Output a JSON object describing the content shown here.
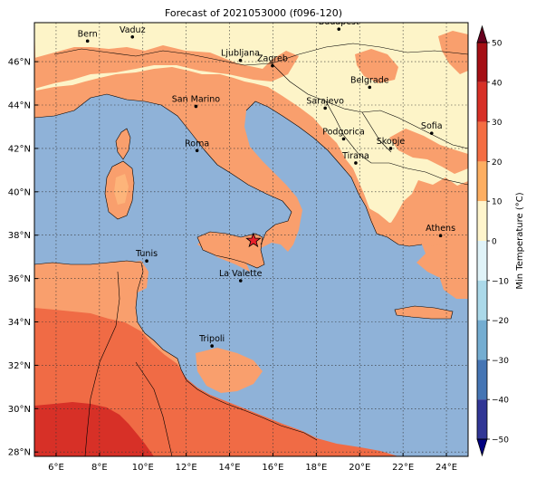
{
  "title": "Forecast of 2021053000 (f096-120)",
  "colorbar": {
    "label": "Min Temperature (°C)",
    "ticks": [
      "50",
      "40",
      "30",
      "20",
      "10",
      "0",
      "−10",
      "−20",
      "−30",
      "−40",
      "−50"
    ],
    "colors": [
      "#67001f",
      "#a50f15",
      "#d73027",
      "#f46d43",
      "#fdae61",
      "#fff5cc",
      "#e0f3f8",
      "#abd9e9",
      "#74add1",
      "#4575b4",
      "#313695"
    ]
  },
  "map": {
    "lon_ticks": [
      "6°E",
      "8°E",
      "10°E",
      "12°E",
      "14°E",
      "16°E",
      "18°E",
      "20°E",
      "22°E",
      "24°E"
    ],
    "lat_ticks": [
      "46°N",
      "44°N",
      "42°N",
      "40°N",
      "38°N",
      "36°N",
      "34°N",
      "32°N",
      "30°N",
      "28°N"
    ],
    "cities": [
      {
        "name": "Bern",
        "lon": 7.45,
        "lat": 46.95
      },
      {
        "name": "Vaduz",
        "lon": 9.52,
        "lat": 47.14
      },
      {
        "name": "Budapest",
        "lon": 19.04,
        "lat": 47.5
      },
      {
        "name": "Ljubljana",
        "lon": 14.5,
        "lat": 46.06
      },
      {
        "name": "Zagreb",
        "lon": 15.98,
        "lat": 45.81
      },
      {
        "name": "Belgrade",
        "lon": 20.46,
        "lat": 44.82
      },
      {
        "name": "San Marino",
        "lon": 12.45,
        "lat": 43.94
      },
      {
        "name": "Sarajevo",
        "lon": 18.41,
        "lat": 43.86
      },
      {
        "name": "Sofia",
        "lon": 23.32,
        "lat": 42.7
      },
      {
        "name": "Podgorica",
        "lon": 19.26,
        "lat": 42.44
      },
      {
        "name": "Skopje",
        "lon": 21.43,
        "lat": 42.0
      },
      {
        "name": "Roma",
        "lon": 12.5,
        "lat": 41.9
      },
      {
        "name": "Tirana",
        "lon": 19.82,
        "lat": 41.33
      },
      {
        "name": "Athens",
        "lon": 23.73,
        "lat": 37.98
      },
      {
        "name": "Tunis",
        "lon": 10.18,
        "lat": 36.81
      },
      {
        "name": "La Valette",
        "lon": 14.51,
        "lat": 35.9
      },
      {
        "name": "Tripoli",
        "lon": 13.19,
        "lat": 32.89
      }
    ],
    "star": {
      "lon": 15.1,
      "lat": 37.75,
      "color": "#e8202a"
    }
  }
}
